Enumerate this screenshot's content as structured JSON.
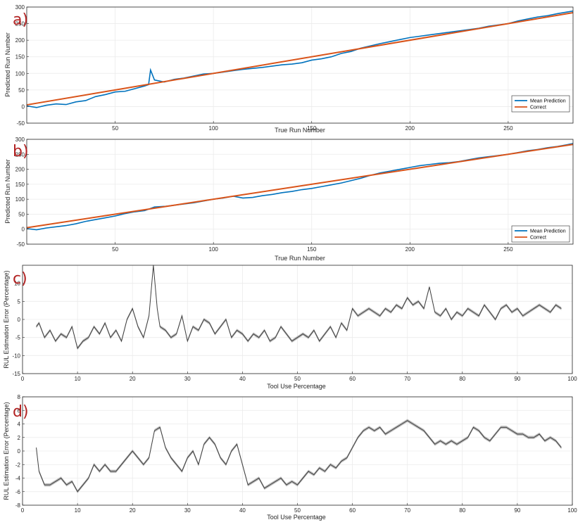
{
  "colors": {
    "mean_prediction": "#0072BD",
    "correct": "#D95319",
    "error_line": "#404040",
    "error_band": "#a6a6a6",
    "panel_letter": "#b22222",
    "grid": "#ebebeb"
  },
  "chart_data": [
    {
      "id": "a",
      "panel_letter": "a)",
      "type": "line",
      "xlabel": "True Run Number",
      "ylabel": "Predicted Run Number",
      "xlim": [
        5,
        283
      ],
      "ylim": [
        -50,
        300
      ],
      "xticks": [
        50,
        100,
        150,
        200,
        250
      ],
      "yticks": [
        -50,
        0,
        50,
        100,
        150,
        200,
        250,
        300
      ],
      "grid": true,
      "legend": "bottom-right",
      "series": [
        {
          "name": "Mean Prediction",
          "x": [
            5,
            10,
            15,
            20,
            25,
            30,
            35,
            40,
            45,
            50,
            55,
            60,
            65,
            67,
            68,
            70,
            75,
            80,
            85,
            90,
            95,
            100,
            105,
            110,
            115,
            120,
            125,
            130,
            135,
            140,
            145,
            150,
            155,
            160,
            165,
            170,
            175,
            180,
            185,
            190,
            195,
            200,
            205,
            210,
            215,
            220,
            225,
            230,
            235,
            240,
            245,
            250,
            255,
            260,
            265,
            270,
            275,
            280,
            283
          ],
          "y": [
            2,
            -3,
            4,
            8,
            6,
            14,
            18,
            30,
            36,
            44,
            46,
            54,
            62,
            66,
            110,
            80,
            74,
            82,
            86,
            92,
            98,
            100,
            104,
            108,
            112,
            115,
            118,
            122,
            126,
            128,
            132,
            140,
            144,
            150,
            160,
            166,
            176,
            183,
            190,
            196,
            202,
            208,
            212,
            216,
            220,
            224,
            228,
            232,
            236,
            242,
            246,
            250,
            258,
            264,
            270,
            274,
            280,
            285,
            288
          ]
        },
        {
          "name": "Correct",
          "x": [
            5,
            283
          ],
          "y": [
            5,
            283
          ]
        }
      ]
    },
    {
      "id": "b",
      "panel_letter": "b)",
      "type": "line",
      "xlabel": "True Run Number",
      "ylabel": "Predicted Run Number",
      "xlim": [
        5,
        283
      ],
      "ylim": [
        -50,
        300
      ],
      "xticks": [
        50,
        100,
        150,
        200,
        250
      ],
      "yticks": [
        -50,
        0,
        50,
        100,
        150,
        200,
        250,
        300
      ],
      "grid": true,
      "legend": "bottom-right",
      "series": [
        {
          "name": "Mean Prediction",
          "x": [
            5,
            10,
            15,
            20,
            25,
            30,
            35,
            40,
            45,
            50,
            55,
            60,
            65,
            70,
            75,
            80,
            85,
            90,
            95,
            100,
            105,
            110,
            115,
            120,
            125,
            130,
            135,
            140,
            145,
            150,
            155,
            160,
            165,
            170,
            175,
            180,
            185,
            190,
            195,
            200,
            205,
            210,
            215,
            220,
            225,
            230,
            235,
            240,
            245,
            250,
            255,
            260,
            265,
            270,
            275,
            280,
            283
          ],
          "y": [
            2,
            -2,
            4,
            8,
            12,
            18,
            26,
            32,
            38,
            44,
            52,
            58,
            62,
            74,
            76,
            80,
            84,
            88,
            94,
            100,
            104,
            110,
            104,
            106,
            112,
            116,
            122,
            126,
            132,
            136,
            142,
            148,
            154,
            162,
            170,
            180,
            188,
            194,
            200,
            206,
            212,
            216,
            220,
            222,
            226,
            232,
            238,
            242,
            246,
            250,
            256,
            262,
            266,
            272,
            276,
            282,
            286
          ]
        },
        {
          "name": "Correct",
          "x": [
            5,
            283
          ],
          "y": [
            5,
            283
          ]
        }
      ]
    },
    {
      "id": "c",
      "panel_letter": "c)",
      "type": "line",
      "xlabel": "Tool Use Percentage",
      "ylabel": "RUL Estimation Error (Percentage)",
      "xlim": [
        0,
        100
      ],
      "ylim": [
        -15,
        15
      ],
      "xticks": [
        0,
        10,
        20,
        30,
        40,
        50,
        60,
        70,
        80,
        90,
        100
      ],
      "yticks": [
        -15,
        -10,
        -5,
        0,
        5,
        10
      ],
      "grid": true,
      "band": "grey confidence band",
      "series": [
        {
          "x": [
            2.5,
            3,
            4,
            5,
            6,
            7,
            8,
            9,
            10,
            11,
            12,
            13,
            14,
            15,
            16,
            17,
            18,
            19,
            20,
            21,
            22,
            23,
            23.8,
            24.5,
            25,
            26,
            27,
            28,
            29,
            30,
            31,
            32,
            33,
            34,
            35,
            36,
            37,
            38,
            39,
            40,
            41,
            42,
            43,
            44,
            45,
            46,
            47,
            48,
            49,
            50,
            51,
            52,
            53,
            54,
            55,
            56,
            57,
            58,
            59,
            60,
            61,
            62,
            63,
            64,
            65,
            66,
            67,
            68,
            69,
            70,
            71,
            72,
            73,
            74,
            75,
            76,
            77,
            78,
            79,
            80,
            81,
            82,
            83,
            84,
            85,
            86,
            87,
            88,
            89,
            90,
            91,
            92,
            93,
            94,
            95,
            96,
            97,
            98
          ],
          "y": [
            -2,
            -1,
            -5,
            -3,
            -6,
            -4,
            -5,
            -2,
            -8,
            -6,
            -5,
            -2,
            -4,
            -1,
            -5,
            -3,
            -6,
            0,
            3,
            -2,
            -5,
            1,
            15,
            3,
            -2,
            -3,
            -5,
            -4,
            1,
            -6,
            -2,
            -3,
            0,
            -1,
            -4,
            -2,
            0,
            -5,
            -3,
            -4,
            -6,
            -4,
            -5,
            -3,
            -6,
            -5,
            -2,
            -4,
            -6,
            -5,
            -4,
            -5,
            -3,
            -6,
            -4,
            -2,
            -5,
            -1,
            -3,
            3,
            1,
            2,
            3,
            2,
            1,
            3,
            2,
            4,
            3,
            6,
            4,
            5,
            3,
            9,
            2,
            1,
            3,
            0,
            2,
            1,
            3,
            2,
            1,
            4,
            2,
            0,
            3,
            4,
            2,
            3,
            1,
            2,
            3,
            4,
            3,
            2,
            4,
            3
          ]
        }
      ]
    },
    {
      "id": "d",
      "panel_letter": "d)",
      "type": "line",
      "xlabel": "Tool Use Percentage",
      "ylabel": "RUL Estimation Error (Percentage)",
      "xlim": [
        0,
        100
      ],
      "ylim": [
        -8,
        8
      ],
      "xticks": [
        0,
        10,
        20,
        30,
        40,
        50,
        60,
        70,
        80,
        90,
        100
      ],
      "yticks": [
        -8,
        -6,
        -4,
        -2,
        0,
        2,
        4,
        6,
        8
      ],
      "grid": true,
      "band": "grey confidence band",
      "series": [
        {
          "x": [
            2.5,
            3,
            4,
            5,
            6,
            7,
            8,
            9,
            10,
            11,
            12,
            13,
            14,
            15,
            16,
            17,
            18,
            19,
            20,
            21,
            22,
            23,
            24,
            25,
            26,
            27,
            28,
            29,
            30,
            31,
            32,
            33,
            34,
            35,
            36,
            37,
            38,
            39,
            40,
            41,
            42,
            43,
            44,
            45,
            46,
            47,
            48,
            49,
            50,
            51,
            52,
            53,
            54,
            55,
            56,
            57,
            58,
            59,
            60,
            61,
            62,
            63,
            64,
            65,
            66,
            67,
            68,
            69,
            70,
            71,
            72,
            73,
            74,
            75,
            76,
            77,
            78,
            79,
            80,
            81,
            82,
            83,
            84,
            85,
            86,
            87,
            88,
            89,
            90,
            91,
            92,
            93,
            94,
            95,
            96,
            97,
            98
          ],
          "y": [
            0.5,
            -3,
            -5,
            -5,
            -4.5,
            -4,
            -5,
            -4.5,
            -6,
            -5,
            -4,
            -2,
            -3,
            -2,
            -3,
            -3,
            -2,
            -1,
            0,
            -1,
            -2,
            -1,
            3,
            3.5,
            0.5,
            -1,
            -2,
            -3,
            -1,
            0,
            -2,
            1,
            2,
            1,
            -1,
            -2,
            0,
            1,
            -2,
            -5,
            -4.5,
            -4,
            -5.5,
            -5,
            -4.5,
            -4,
            -5,
            -4.5,
            -5,
            -4,
            -3,
            -3.5,
            -2.5,
            -3,
            -2,
            -2.5,
            -1.5,
            -1,
            0.5,
            2,
            3,
            3.5,
            3,
            3.5,
            2.5,
            3,
            3.5,
            4,
            4.5,
            4,
            3.5,
            3,
            2,
            1,
            1.5,
            1,
            1.5,
            1,
            1.5,
            2,
            3.5,
            3,
            2,
            1.5,
            2.5,
            3.5,
            3.5,
            3,
            2.5,
            2.5,
            2,
            2,
            2.5,
            1.5,
            2,
            1.5,
            0.5
          ]
        }
      ]
    }
  ]
}
